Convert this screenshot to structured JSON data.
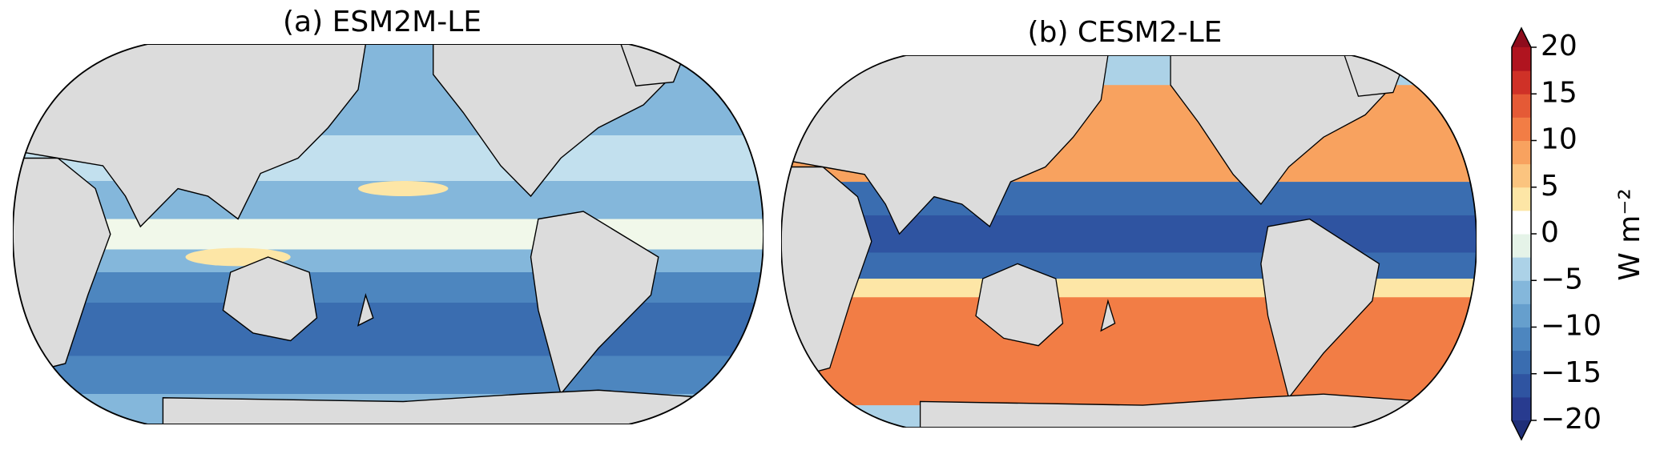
{
  "maps": [
    {
      "title": "(a) ESM2M-LE"
    },
    {
      "title": "(b) CESM2-LE"
    }
  ],
  "colorbar": {
    "label": "W m⁻²",
    "clim": [
      -20,
      20
    ],
    "ticks": [
      {
        "value": -20,
        "label": "−20"
      },
      {
        "value": -15,
        "label": "−15"
      },
      {
        "value": -10,
        "label": "−10"
      },
      {
        "value": -5,
        "label": "−5"
      },
      0,
      5,
      10,
      15,
      20
    ],
    "colors": [
      "#283b8f",
      "#2f54a1",
      "#3a6db0",
      "#4d86bf",
      "#669fcd",
      "#84b7db",
      "#acd2e7",
      "#e5f3e8",
      "#ffffff",
      "#fde6a6",
      "#fbc47f",
      "#f8a25f",
      "#f27d45",
      "#e55a36",
      "#cf3127",
      "#b0141f"
    ],
    "under_color": "#1f2f78",
    "over_color": "#8e0c1c",
    "extend": "both"
  }
}
